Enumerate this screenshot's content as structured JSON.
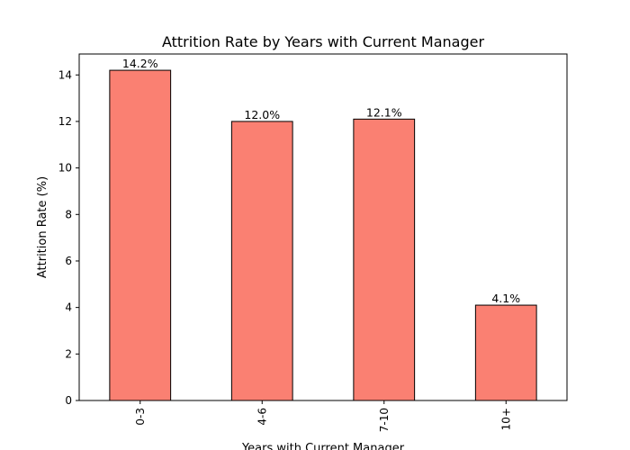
{
  "chart_data": {
    "type": "bar",
    "title": "Attrition Rate by Years with Current Manager",
    "xlabel": "Years with Current Manager",
    "ylabel": "Attrition Rate (%)",
    "categories": [
      "0-3",
      "4-6",
      "7-10",
      "10+"
    ],
    "values": [
      14.2,
      12.0,
      12.1,
      4.1
    ],
    "data_labels": [
      "14.2%",
      "12.0%",
      "12.1%",
      "4.1%"
    ],
    "ylim": [
      0,
      14.9
    ],
    "yticks": [
      0,
      2,
      4,
      6,
      8,
      10,
      12,
      14
    ],
    "bar_color": "#FA8072",
    "edge_color": "#000000",
    "grid": false,
    "x_tick_rotation": 90
  }
}
